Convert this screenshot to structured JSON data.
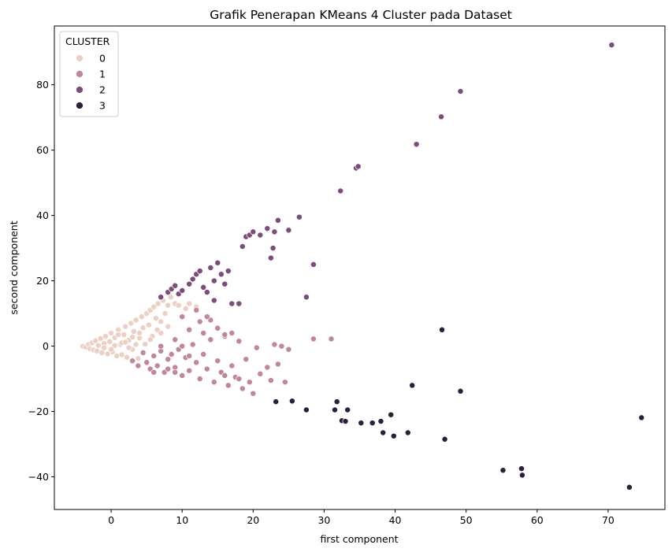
{
  "chart_data": {
    "type": "scatter",
    "title": "Grafik Penerapan KMeans 4 Cluster pada Dataset",
    "xlabel": "first component",
    "ylabel": "second component",
    "xlim": [
      -8,
      78
    ],
    "ylim": [
      -50,
      98
    ],
    "x_ticks": [
      0,
      10,
      20,
      30,
      40,
      50,
      60,
      70
    ],
    "y_ticks": [
      -40,
      -20,
      0,
      20,
      40,
      60,
      80
    ],
    "grid": false,
    "legend": {
      "title": "CLUSTER",
      "placement": "top-left"
    },
    "series": [
      {
        "name": "0",
        "color": "#ecd0c6",
        "points": [
          [
            -4,
            0
          ],
          [
            -3.6,
            -0.3
          ],
          [
            -3.2,
            0.5
          ],
          [
            -3,
            -0.8
          ],
          [
            -2.7,
            1
          ],
          [
            -2.5,
            -1.2
          ],
          [
            -2.2,
            1.6
          ],
          [
            -2,
            -1.5
          ],
          [
            -1.8,
            0.2
          ],
          [
            -1.5,
            2.3
          ],
          [
            -1.3,
            -2
          ],
          [
            -1,
            0.8
          ],
          [
            -0.8,
            3
          ],
          [
            -0.5,
            -2.4
          ],
          [
            -0.2,
            1.4
          ],
          [
            0,
            4
          ],
          [
            0.2,
            -1.8
          ],
          [
            0.5,
            2.6
          ],
          [
            0.8,
            -3
          ],
          [
            1,
            5
          ],
          [
            1.3,
            0.5
          ],
          [
            1.5,
            -2.6
          ],
          [
            1.8,
            3.5
          ],
          [
            2,
            6
          ],
          [
            2.2,
            -3.4
          ],
          [
            2.5,
            1.8
          ],
          [
            2.8,
            7
          ],
          [
            3,
            -1
          ],
          [
            3.2,
            4.5
          ],
          [
            3.5,
            8
          ],
          [
            3.8,
            -3.8
          ],
          [
            4,
            2.5
          ],
          [
            4.3,
            9
          ],
          [
            4.5,
            5.6
          ],
          [
            4.8,
            0.6
          ],
          [
            5,
            10
          ],
          [
            5.3,
            6.5
          ],
          [
            5.5,
            11
          ],
          [
            5.8,
            3
          ],
          [
            6,
            12
          ],
          [
            6.3,
            8.5
          ],
          [
            6.6,
            13
          ],
          [
            7,
            7.5
          ],
          [
            7.3,
            14
          ],
          [
            7.6,
            10
          ],
          [
            8,
            12.5
          ],
          [
            8.4,
            15
          ],
          [
            9,
            13
          ],
          [
            9.5,
            12.5
          ],
          [
            10.5,
            11.5
          ],
          [
            11,
            13
          ],
          [
            12,
            12
          ],
          [
            0.5,
            0.2
          ],
          [
            1.5,
            1
          ],
          [
            2.5,
            -0.5
          ],
          [
            3.5,
            0.5
          ],
          [
            -1,
            -0.5
          ],
          [
            0,
            -1
          ],
          [
            2,
            1.2
          ],
          [
            3,
            2.8
          ],
          [
            4,
            4
          ],
          [
            1,
            3.5
          ],
          [
            6.5,
            5
          ],
          [
            5.5,
            2
          ],
          [
            7,
            4
          ],
          [
            8,
            6
          ]
        ]
      },
      {
        "name": "1",
        "color": "#c0869c",
        "points": [
          [
            3,
            -4.5
          ],
          [
            3.8,
            -6
          ],
          [
            4.5,
            -2
          ],
          [
            5,
            -5
          ],
          [
            5.5,
            -7
          ],
          [
            6,
            -3
          ],
          [
            6.5,
            -6
          ],
          [
            7,
            -1.5
          ],
          [
            7.5,
            -8
          ],
          [
            8,
            -4
          ],
          [
            8.5,
            -2.5
          ],
          [
            9,
            -6.5
          ],
          [
            9.5,
            -1
          ],
          [
            10,
            -9
          ],
          [
            10.5,
            -3.5
          ],
          [
            11,
            -7.5
          ],
          [
            11.5,
            0.5
          ],
          [
            12,
            -5
          ],
          [
            12.5,
            -10
          ],
          [
            13,
            -2.5
          ],
          [
            13.5,
            -7
          ],
          [
            14,
            2
          ],
          [
            14.5,
            -11
          ],
          [
            15,
            -4.5
          ],
          [
            15.5,
            -8
          ],
          [
            16,
            3
          ],
          [
            16.5,
            -12
          ],
          [
            17,
            -6
          ],
          [
            17.5,
            -9.5
          ],
          [
            18,
            1.5
          ],
          [
            18.5,
            -13
          ],
          [
            19,
            -4
          ],
          [
            19.5,
            -11
          ],
          [
            20,
            -14.5
          ],
          [
            20.5,
            -0.5
          ],
          [
            21,
            -8.5
          ],
          [
            22,
            -6.5
          ],
          [
            22.5,
            -10.5
          ],
          [
            23,
            0.5
          ],
          [
            23.5,
            -5.5
          ],
          [
            24,
            0
          ],
          [
            24.5,
            -11
          ],
          [
            25,
            -1
          ],
          [
            10,
            9
          ],
          [
            11,
            5
          ],
          [
            12,
            11
          ],
          [
            12.5,
            7.5
          ],
          [
            13,
            4
          ],
          [
            14,
            8
          ],
          [
            15,
            5.5
          ],
          [
            16,
            3.5
          ],
          [
            17,
            4
          ],
          [
            13.5,
            9
          ],
          [
            28.5,
            2.2
          ],
          [
            31,
            2.2
          ],
          [
            18,
            -10
          ],
          [
            16,
            -9
          ],
          [
            9,
            -8
          ],
          [
            8,
            -7
          ],
          [
            6,
            -8
          ],
          [
            7,
            0
          ],
          [
            9,
            2
          ],
          [
            10,
            0
          ],
          [
            11,
            -3
          ]
        ]
      },
      {
        "name": "2",
        "color": "#7e4c7a",
        "points": [
          [
            7,
            15
          ],
          [
            8,
            16.5
          ],
          [
            8.5,
            17.5
          ],
          [
            9,
            18.5
          ],
          [
            9.5,
            16
          ],
          [
            10,
            17
          ],
          [
            11,
            19
          ],
          [
            11.5,
            20.5
          ],
          [
            12,
            22
          ],
          [
            12.5,
            23
          ],
          [
            13,
            18
          ],
          [
            13.5,
            16.5
          ],
          [
            14,
            24
          ],
          [
            14.5,
            20
          ],
          [
            15,
            25.5
          ],
          [
            15.5,
            22
          ],
          [
            16,
            19
          ],
          [
            16.5,
            23
          ],
          [
            17,
            13
          ],
          [
            18,
            13
          ],
          [
            18.5,
            30.5
          ],
          [
            19,
            33.5
          ],
          [
            19.5,
            34
          ],
          [
            20,
            35
          ],
          [
            21,
            34
          ],
          [
            22,
            36
          ],
          [
            22.5,
            27
          ],
          [
            22.8,
            30
          ],
          [
            23,
            35
          ],
          [
            23.5,
            38.5
          ],
          [
            25,
            35.5
          ],
          [
            26.5,
            39.5
          ],
          [
            27.5,
            15
          ],
          [
            28.5,
            25
          ],
          [
            32.3,
            47.5
          ],
          [
            34.5,
            54.5
          ],
          [
            34.8,
            55
          ],
          [
            43,
            61.8
          ],
          [
            46.5,
            70.2
          ],
          [
            49.2,
            78
          ],
          [
            70.5,
            92.2
          ],
          [
            14.5,
            14
          ]
        ]
      },
      {
        "name": "3",
        "color": "#2c1e3c",
        "points": [
          [
            23.2,
            -17
          ],
          [
            25.5,
            -16.8
          ],
          [
            27.5,
            -19.5
          ],
          [
            31.5,
            -19.5
          ],
          [
            31.8,
            -17
          ],
          [
            32.5,
            -22.8
          ],
          [
            33,
            -23
          ],
          [
            33.3,
            -19.5
          ],
          [
            35.2,
            -23.5
          ],
          [
            36.8,
            -23.5
          ],
          [
            38,
            -23
          ],
          [
            38.3,
            -26.5
          ],
          [
            39.4,
            -21
          ],
          [
            39.8,
            -27.5
          ],
          [
            41.8,
            -26.5
          ],
          [
            42.4,
            -12
          ],
          [
            46.6,
            5
          ],
          [
            47,
            -28.5
          ],
          [
            49.2,
            -13.8
          ],
          [
            55.2,
            -38
          ],
          [
            57.8,
            -37.5
          ],
          [
            57.9,
            -39.5
          ],
          [
            73,
            -43.2
          ],
          [
            74.7,
            -21.9
          ]
        ]
      }
    ]
  }
}
